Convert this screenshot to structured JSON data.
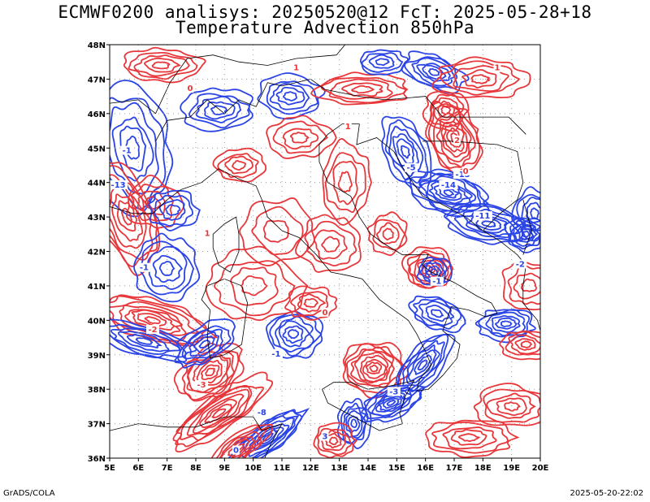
{
  "title_line1": "ECMWF0200 analisys: 20250520@12 FcT: 2025-05-28+18",
  "title_line2": "Temperature Advection 850hPa",
  "footer_left": "GrADS/COLA",
  "footer_right": "2025-05-20-22:02",
  "map": {
    "lon_range": [
      5,
      20
    ],
    "lat_range": [
      36,
      48
    ],
    "lon_ticks": [
      "5E",
      "6E",
      "7E",
      "8E",
      "9E",
      "10E",
      "11E",
      "12E",
      "13E",
      "14E",
      "15E",
      "16E",
      "17E",
      "18E",
      "19E",
      "20E"
    ],
    "lat_ticks": [
      "36N",
      "37N",
      "38N",
      "39N",
      "40N",
      "41N",
      "42N",
      "43N",
      "44N",
      "45N",
      "46N",
      "47N",
      "48N"
    ],
    "grid": "dotted",
    "colors": {
      "warm_advection": "#e8373b",
      "cold_advection": "#2b44e6",
      "coastline": "#000000",
      "grid": "#9a9a9a"
    },
    "contour_labels": [
      "0",
      "1",
      "-1",
      "2",
      "-2",
      "3",
      "-3",
      "-5",
      "-8",
      "-11",
      "-13",
      "-14"
    ]
  }
}
